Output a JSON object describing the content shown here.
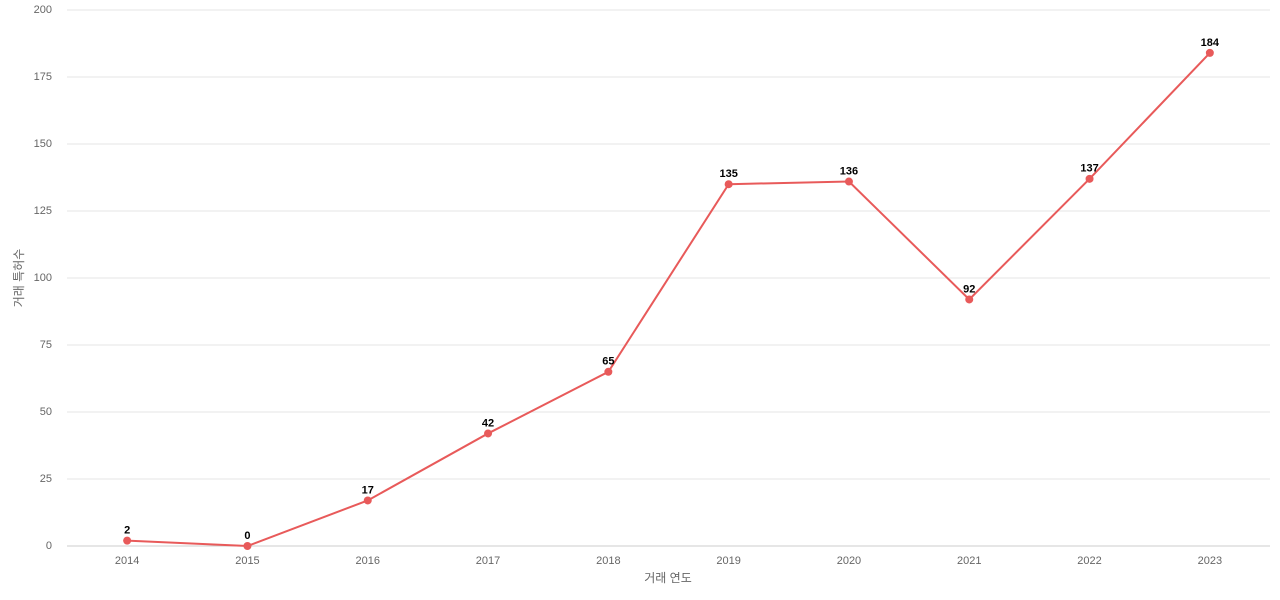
{
  "chart_data": {
    "type": "line",
    "x_label": "거래 연도",
    "y_label": "거래 특허수",
    "categories": [
      "2014",
      "2015",
      "2016",
      "2017",
      "2018",
      "2019",
      "2020",
      "2021",
      "2022",
      "2023"
    ],
    "series": [
      {
        "name": "거래 특허수",
        "color": "#e85a5a",
        "values": [
          2,
          0,
          17,
          42,
          65,
          135,
          136,
          92,
          137,
          184
        ]
      }
    ],
    "ylim": [
      0,
      200
    ],
    "yticks": [
      0,
      25,
      50,
      75,
      100,
      125,
      150,
      175,
      200
    ],
    "grid": true
  }
}
